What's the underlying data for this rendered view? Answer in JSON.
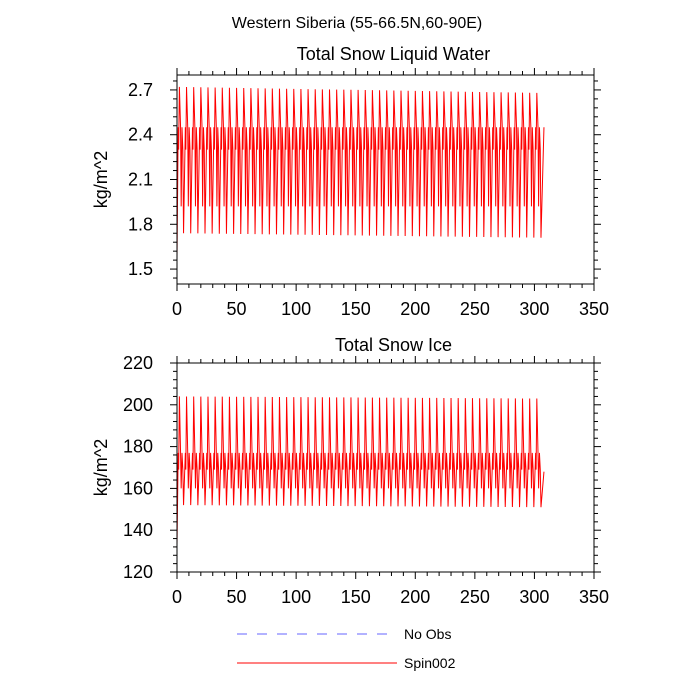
{
  "figure": {
    "suptitle": "Western Siberia (55-66.5N,60-90E)"
  },
  "colors": {
    "spin_line": "#ff0000",
    "obs_line": "#6666ff",
    "axis": "#000000",
    "background": "#ffffff"
  },
  "legend": {
    "placement": "bottom-center",
    "entries": [
      {
        "name": "No Obs",
        "style": "dashed",
        "color": "#6666ff"
      },
      {
        "name": "Spin002",
        "style": "solid",
        "color": "#ff0000"
      }
    ]
  },
  "chart_data": [
    {
      "type": "line",
      "title": "Total Snow Liquid Water",
      "xlabel": "",
      "ylabel": "kg/m^2",
      "xlim": [
        0,
        350
      ],
      "ylim": [
        1.4,
        2.8
      ],
      "xticks": [
        0,
        50,
        100,
        150,
        200,
        250,
        300,
        350
      ],
      "xtick_labels": [
        "0",
        "50",
        "100",
        "150",
        "200",
        "250",
        "300",
        "350"
      ],
      "yticks": [
        1.5,
        1.8,
        2.1,
        2.4,
        2.7
      ],
      "ytick_labels": [
        "1.5",
        "1.8",
        "2.1",
        "2.4",
        "2.7"
      ],
      "grid": false,
      "series": [
        {
          "name": "Spin002",
          "color": "#ff0000",
          "style": "solid",
          "pattern": {
            "x_start": 0,
            "x_end": 308,
            "period": 6,
            "start_value": 1.58,
            "peak_first": 2.72,
            "peak_last": 2.68,
            "trough_first": 1.74,
            "trough_last": 1.71,
            "mid_high": 2.45,
            "mid_low": 2.3,
            "lower_mid": 1.92,
            "end_value": 2.45
          }
        }
      ]
    },
    {
      "type": "line",
      "title": "Total Snow Ice",
      "xlabel": "",
      "ylabel": "kg/m^2",
      "xlim": [
        0,
        350
      ],
      "ylim": [
        120,
        220
      ],
      "xticks": [
        0,
        50,
        100,
        150,
        200,
        250,
        300,
        350
      ],
      "xtick_labels": [
        "0",
        "50",
        "100",
        "150",
        "200",
        "250",
        "300",
        "350"
      ],
      "yticks": [
        120,
        140,
        160,
        180,
        200,
        220
      ],
      "ytick_labels": [
        "120",
        "140",
        "160",
        "180",
        "200",
        "220"
      ],
      "grid": false,
      "series": [
        {
          "name": "Spin002",
          "color": "#ff0000",
          "style": "solid",
          "pattern": {
            "x_start": 0,
            "x_end": 308,
            "period": 6,
            "start_value": 133,
            "peak_first": 204,
            "peak_last": 203,
            "trough_first": 152,
            "trough_last": 151,
            "mid_high": 177,
            "mid_low": 169,
            "lower_mid": 160,
            "end_value": 168
          }
        }
      ]
    }
  ]
}
